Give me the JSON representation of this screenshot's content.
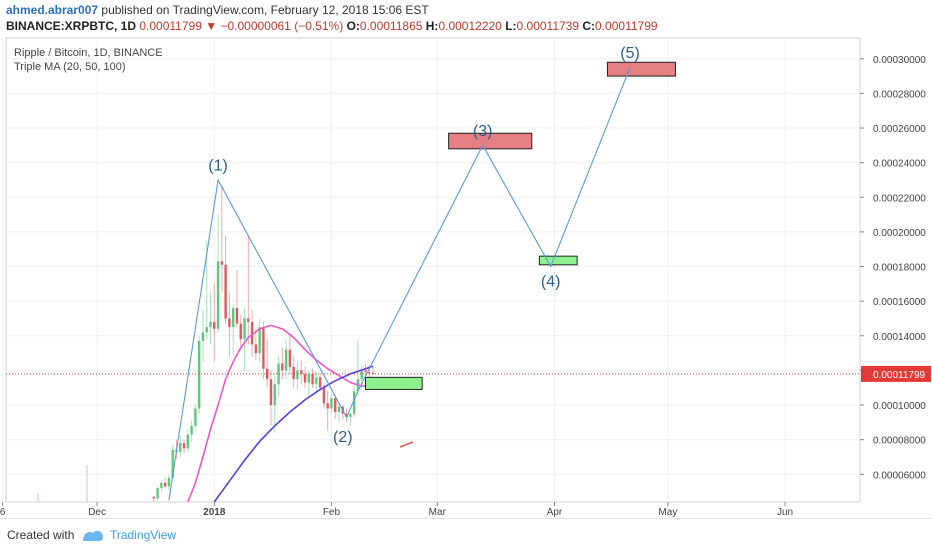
{
  "header": {
    "author": "ahmed.abrar007",
    "published_text": "published on TradingView.com, February 12, 2018 15:06 EST",
    "symbol": "BINANCE:XRPBTC, 1D",
    "last": "0.00011799",
    "change": "−0.00000061 (−0.51%)",
    "open_label": "O:",
    "open": "0.00011865",
    "high_label": "H:",
    "high": "0.00012220",
    "low_label": "L:",
    "low": "0.00011739",
    "close_label": "C:",
    "close": "0.00011799"
  },
  "legend": {
    "title": "Ripple / Bitcoin, 1D, BINANCE",
    "indicator": "Triple MA (20, 50, 100)"
  },
  "footer": {
    "created_with": "Created with",
    "brand": "TradingView"
  },
  "colors": {
    "up": "#5cc97a",
    "down": "#e0595f",
    "ma_fast": "#ee55c6",
    "ma_slow": "#5a3ddb",
    "wave": "#5b9bd5",
    "price_tag": "#e53935"
  },
  "chart_data": {
    "type": "candlestick",
    "y_axis_ticks": [
      "0.00030000",
      "0.00028000",
      "0.00026000",
      "0.00024000",
      "0.00022000",
      "0.00020000",
      "0.00018000",
      "0.00016000",
      "0.00014000",
      "0.00012000",
      "0.00010000",
      "0.00008000",
      "0.00006000"
    ],
    "ylim": [
      4.4e-05,
      0.000312
    ],
    "x_axis_ticks": [
      "6",
      "Dec",
      "2018",
      "Feb",
      "Mar",
      "Apr",
      "May",
      "Jun"
    ],
    "last_price_label": "0.00011799",
    "candles": [
      {
        "o": 4.7e-05,
        "h": 4.75e-05,
        "l": 4.4e-05,
        "c": 4.6e-05,
        "d": "Dec 16"
      },
      {
        "o": 4.6e-05,
        "h": 5.3e-05,
        "l": 4.45e-05,
        "c": 5.2e-05,
        "d": "Dec 17"
      },
      {
        "o": 5.2e-05,
        "h": 5.65e-05,
        "l": 5e-05,
        "c": 5.5e-05,
        "d": "Dec 18"
      },
      {
        "o": 5.5e-05,
        "h": 5.8e-05,
        "l": 5.2e-05,
        "c": 5.3e-05,
        "d": "Dec 19"
      },
      {
        "o": 5.3e-05,
        "h": 6e-05,
        "l": 5.1e-05,
        "c": 5.8e-05,
        "d": "Dec 20"
      },
      {
        "o": 5.8e-05,
        "h": 7.7e-05,
        "l": 5.7e-05,
        "c": 7.4e-05,
        "d": "Dec 21"
      },
      {
        "o": 7.4e-05,
        "h": 8e-05,
        "l": 6.9e-05,
        "c": 7.3e-05,
        "d": "Dec 22"
      },
      {
        "o": 7.3e-05,
        "h": 8.2e-05,
        "l": 7e-05,
        "c": 7.8e-05,
        "d": "Dec 23"
      },
      {
        "o": 7.8e-05,
        "h": 8e-05,
        "l": 7.2e-05,
        "c": 7.5e-05,
        "d": "Dec 24"
      },
      {
        "o": 7.5e-05,
        "h": 8.6e-05,
        "l": 7.3e-05,
        "c": 8.3e-05,
        "d": "Dec 25"
      },
      {
        "o": 8.3e-05,
        "h": 9.1e-05,
        "l": 7.9e-05,
        "c": 8.8e-05,
        "d": "Dec 26"
      },
      {
        "o": 8.8e-05,
        "h": 0.0001,
        "l": 8.6e-05,
        "c": 9.8e-05,
        "d": "Dec 27"
      },
      {
        "o": 9.8e-05,
        "h": 0.00014,
        "l": 9.5e-05,
        "c": 0.000137,
        "d": "Dec 28"
      },
      {
        "o": 0.000137,
        "h": 0.000155,
        "l": 0.000125,
        "c": 0.000142,
        "d": "Dec 29"
      },
      {
        "o": 0.000142,
        "h": 0.000195,
        "l": 0.000138,
        "c": 0.000145,
        "d": "Dec 30"
      },
      {
        "o": 0.000145,
        "h": 0.000165,
        "l": 0.000135,
        "c": 0.000148,
        "d": "Dec 31"
      },
      {
        "o": 0.000148,
        "h": 0.00017,
        "l": 0.000125,
        "c": 0.000144,
        "d": "Jan 1"
      },
      {
        "o": 0.000144,
        "h": 0.00021,
        "l": 0.000142,
        "c": 0.000183,
        "d": "Jan 2"
      },
      {
        "o": 0.000183,
        "h": 0.000226,
        "l": 0.000165,
        "c": 0.000181,
        "d": "Jan 3"
      },
      {
        "o": 0.000181,
        "h": 0.000198,
        "l": 0.000147,
        "c": 0.00015,
        "d": "Jan 4"
      },
      {
        "o": 0.00015,
        "h": 0.000165,
        "l": 0.000128,
        "c": 0.000145,
        "d": "Jan 5"
      },
      {
        "o": 0.000145,
        "h": 0.000158,
        "l": 0.000129,
        "c": 0.000156,
        "d": "Jan 6"
      },
      {
        "o": 0.000156,
        "h": 0.000178,
        "l": 0.000145,
        "c": 0.000147,
        "d": "Jan 7"
      },
      {
        "o": 0.000147,
        "h": 0.000152,
        "l": 0.000132,
        "c": 0.000138,
        "d": "Jan 8"
      },
      {
        "o": 0.000138,
        "h": 0.000156,
        "l": 0.00012,
        "c": 0.00015,
        "d": "Jan 9"
      },
      {
        "o": 0.00015,
        "h": 0.000198,
        "l": 0.000135,
        "c": 0.000148,
        "d": "Jan 10"
      },
      {
        "o": 0.000148,
        "h": 0.000155,
        "l": 0.000128,
        "c": 0.000135,
        "d": "Jan 11"
      },
      {
        "o": 0.000135,
        "h": 0.000144,
        "l": 0.000126,
        "c": 0.00013,
        "d": "Jan 12"
      },
      {
        "o": 0.00013,
        "h": 0.00015,
        "l": 0.000125,
        "c": 0.000145,
        "d": "Jan 13"
      },
      {
        "o": 0.000145,
        "h": 0.000148,
        "l": 0.000115,
        "c": 0.000121,
        "d": "Jan 14"
      },
      {
        "o": 0.000121,
        "h": 0.000138,
        "l": 0.00011,
        "c": 0.000115,
        "d": "Jan 15"
      },
      {
        "o": 0.000115,
        "h": 0.00012,
        "l": 8.8e-05,
        "c": 0.0001,
        "d": "Jan 16"
      },
      {
        "o": 0.0001,
        "h": 0.000118,
        "l": 8.4e-05,
        "c": 0.000112,
        "d": "Jan 17"
      },
      {
        "o": 0.000112,
        "h": 0.000128,
        "l": 0.000105,
        "c": 0.000124,
        "d": "Jan 18"
      },
      {
        "o": 0.000124,
        "h": 0.000133,
        "l": 0.000115,
        "c": 0.00012,
        "d": "Jan 19"
      },
      {
        "o": 0.00012,
        "h": 0.000138,
        "l": 0.000115,
        "c": 0.000132,
        "d": "Jan 20"
      },
      {
        "o": 0.000132,
        "h": 0.00014,
        "l": 0.000118,
        "c": 0.000122,
        "d": "Jan 21"
      },
      {
        "o": 0.000122,
        "h": 0.000128,
        "l": 0.00011,
        "c": 0.000115,
        "d": "Jan 22"
      },
      {
        "o": 0.000115,
        "h": 0.000125,
        "l": 0.000109,
        "c": 0.00012,
        "d": "Jan 23"
      },
      {
        "o": 0.00012,
        "h": 0.000126,
        "l": 0.000112,
        "c": 0.000118,
        "d": "Jan 24"
      },
      {
        "o": 0.000118,
        "h": 0.000122,
        "l": 0.00011,
        "c": 0.000113,
        "d": "Jan 25"
      },
      {
        "o": 0.000113,
        "h": 0.00012,
        "l": 0.000104,
        "c": 0.000118,
        "d": "Jan 26"
      },
      {
        "o": 0.000118,
        "h": 0.000121,
        "l": 0.00011,
        "c": 0.000112,
        "d": "Jan 27"
      },
      {
        "o": 0.000112,
        "h": 0.000119,
        "l": 0.000106,
        "c": 0.000116,
        "d": "Jan 28"
      },
      {
        "o": 0.000116,
        "h": 0.000118,
        "l": 0.000108,
        "c": 0.00011,
        "d": "Jan 29"
      },
      {
        "o": 0.00011,
        "h": 0.000112,
        "l": 9.8e-05,
        "c": 0.000101,
        "d": "Jan 30"
      },
      {
        "o": 0.000101,
        "h": 0.000108,
        "l": 8.5e-05,
        "c": 9.8e-05,
        "d": "Jan 31"
      },
      {
        "o": 9.8e-05,
        "h": 0.000107,
        "l": 9.5e-05,
        "c": 0.000104,
        "d": "Feb 1"
      },
      {
        "o": 0.000104,
        "h": 0.000106,
        "l": 9.2e-05,
        "c": 9.6e-05,
        "d": "Feb 2"
      },
      {
        "o": 9.6e-05,
        "h": 0.000102,
        "l": 9e-05,
        "c": 9.9e-05,
        "d": "Feb 3"
      },
      {
        "o": 9.9e-05,
        "h": 0.0001,
        "l": 9.2e-05,
        "c": 9.5e-05,
        "d": "Feb 4"
      },
      {
        "o": 9.5e-05,
        "h": 9.8e-05,
        "l": 9e-05,
        "c": 9.3e-05,
        "d": "Feb 5"
      },
      {
        "o": 9.3e-05,
        "h": 9.6e-05,
        "l": 8.8e-05,
        "c": 9.5e-05,
        "d": "Feb 6"
      },
      {
        "o": 9.5e-05,
        "h": 0.000112,
        "l": 9.3e-05,
        "c": 0.000108,
        "d": "Feb 7"
      },
      {
        "o": 0.000108,
        "h": 0.000138,
        "l": 0.000105,
        "c": 0.000115,
        "d": "Feb 8"
      },
      {
        "o": 0.000115,
        "h": 0.000123,
        "l": 0.00011,
        "c": 0.00012,
        "d": "Feb 9"
      },
      {
        "o": 0.00012,
        "h": 0.000124,
        "l": 0.000115,
        "c": 0.000119,
        "d": "Feb 10"
      },
      {
        "o": 0.000119,
        "h": 0.000123,
        "l": 0.000116,
        "c": 0.0001186,
        "d": "Feb 11"
      },
      {
        "o": 0.0001186,
        "h": 0.0001222,
        "l": 0.0001174,
        "c": 0.000118,
        "d": "Feb 12"
      }
    ],
    "ma_fast": [
      {
        "d": "Dec 25",
        "v": 4.4e-05
      },
      {
        "d": "Dec 27",
        "v": 5.5e-05
      },
      {
        "d": "Dec 29",
        "v": 7e-05
      },
      {
        "d": "Dec 31",
        "v": 8.6e-05
      },
      {
        "d": "Jan 2",
        "v": 0.0001
      },
      {
        "d": "Jan 4",
        "v": 0.000115
      },
      {
        "d": "Jan 6",
        "v": 0.000125
      },
      {
        "d": "Jan 8",
        "v": 0.000133
      },
      {
        "d": "Jan 10",
        "v": 0.000139
      },
      {
        "d": "Jan 13",
        "v": 0.000144
      },
      {
        "d": "Jan 16",
        "v": 0.000146
      },
      {
        "d": "Jan 19",
        "v": 0.000144
      },
      {
        "d": "Jan 22",
        "v": 0.000139
      },
      {
        "d": "Jan 25",
        "v": 0.000132
      },
      {
        "d": "Jan 28",
        "v": 0.000126
      },
      {
        "d": "Jan 31",
        "v": 0.000121
      },
      {
        "d": "Feb 3",
        "v": 0.000117
      },
      {
        "d": "Feb 6",
        "v": 0.000113
      },
      {
        "d": "Feb 9",
        "v": 0.000111
      },
      {
        "d": "Feb 12",
        "v": 0.000111
      }
    ],
    "ma_slow": [
      {
        "d": "Jan 1",
        "v": 4.4e-05
      },
      {
        "d": "Jan 5",
        "v": 5.6e-05
      },
      {
        "d": "Jan 9",
        "v": 6.8e-05
      },
      {
        "d": "Jan 13",
        "v": 7.9e-05
      },
      {
        "d": "Jan 17",
        "v": 8.8e-05
      },
      {
        "d": "Jan 21",
        "v": 9.6e-05
      },
      {
        "d": "Jan 25",
        "v": 0.000103
      },
      {
        "d": "Jan 29",
        "v": 0.000109
      },
      {
        "d": "Feb 2",
        "v": 0.000114
      },
      {
        "d": "Feb 6",
        "v": 0.000118
      },
      {
        "d": "Feb 10",
        "v": 0.000121
      },
      {
        "d": "Feb 12",
        "v": 0.0001225
      }
    ],
    "wave_path": [
      {
        "d": "Dec 20",
        "v": 4.5e-05
      },
      {
        "d": "Jan 2",
        "v": 0.00023
      },
      {
        "d": "Feb 5",
        "v": 9.3e-05
      },
      {
        "d": "Feb 8",
        "v": 0.000108
      },
      {
        "d": "Mar 13",
        "v": 0.00025
      },
      {
        "d": "Mar 31",
        "v": 0.00018
      },
      {
        "d": "Apr 21",
        "v": 0.000295
      }
    ],
    "wave_labels": [
      {
        "text": "(1)",
        "d": "Jan 2",
        "v": 0.000239
      },
      {
        "text": "(2)",
        "d": "Feb 4",
        "v": 8.2e-05
      },
      {
        "text": "(3)",
        "d": "Mar 13",
        "v": 0.000259
      },
      {
        "text": "(4)",
        "d": "Mar 31",
        "v": 0.000172
      },
      {
        "text": "(5)",
        "d": "Apr 21",
        "v": 0.000304
      }
    ],
    "zones": [
      {
        "kind": "target",
        "d1": "Mar 4",
        "d2": "Mar 26",
        "v1": 0.000257,
        "v2": 0.000248
      },
      {
        "kind": "target",
        "d1": "Apr 15",
        "d2": "May 3",
        "v1": 0.000298,
        "v2": 0.00029
      },
      {
        "kind": "entry",
        "d1": "Feb 10",
        "d2": "Feb 25",
        "v1": 0.000116,
        "v2": 0.000109
      },
      {
        "kind": "entry",
        "d1": "Mar 28",
        "d2": "Apr 7",
        "v1": 0.000186,
        "v2": 0.000181
      }
    ]
  }
}
